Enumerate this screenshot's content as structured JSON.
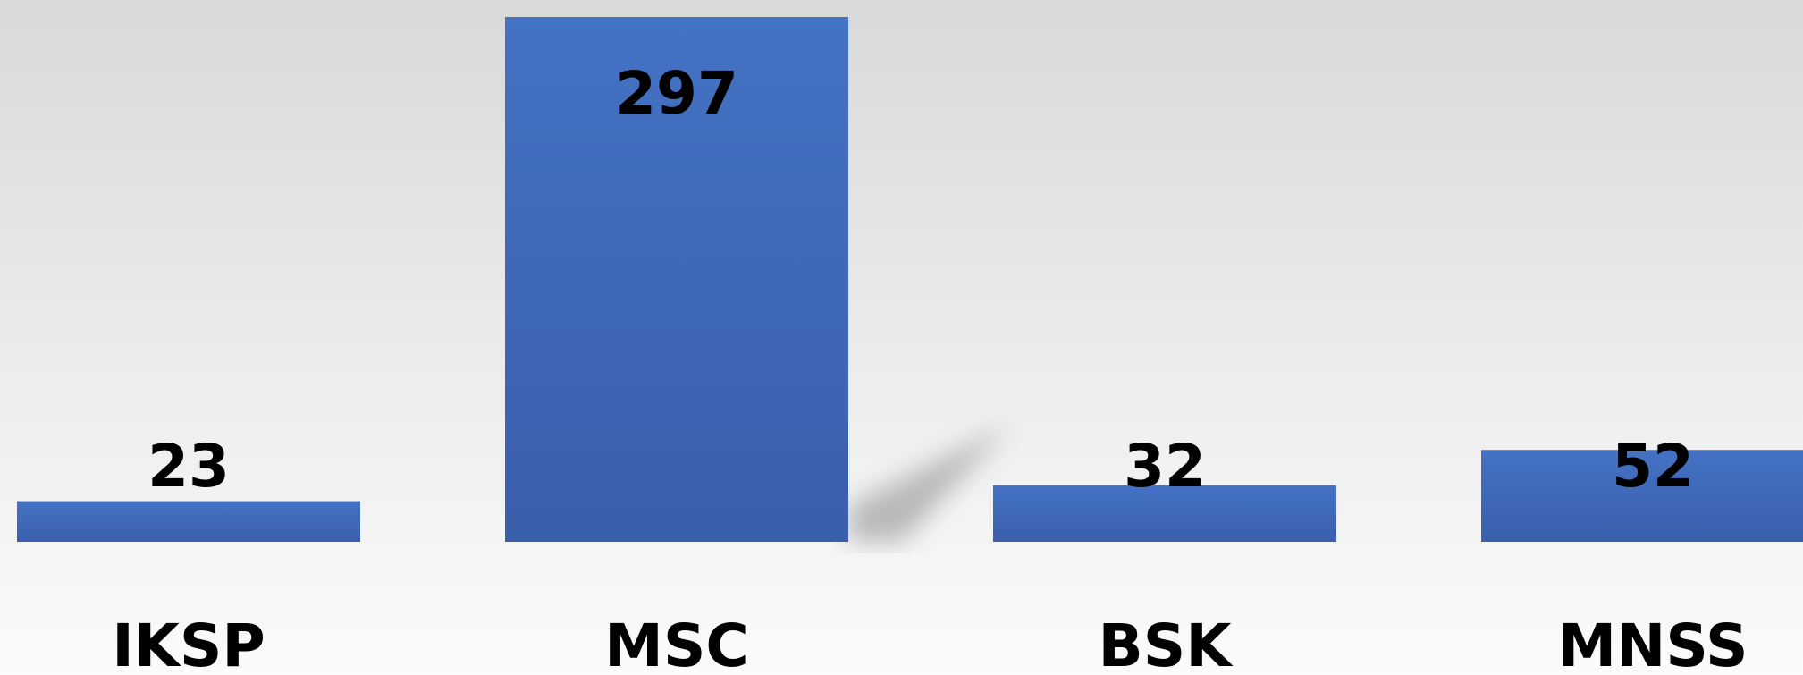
{
  "chart_data": {
    "type": "bar",
    "categories": [
      "IKSP",
      "MSC",
      "BSK",
      "MNSS"
    ],
    "values": [
      23,
      297,
      32,
      52
    ],
    "color": "#4472c4"
  }
}
